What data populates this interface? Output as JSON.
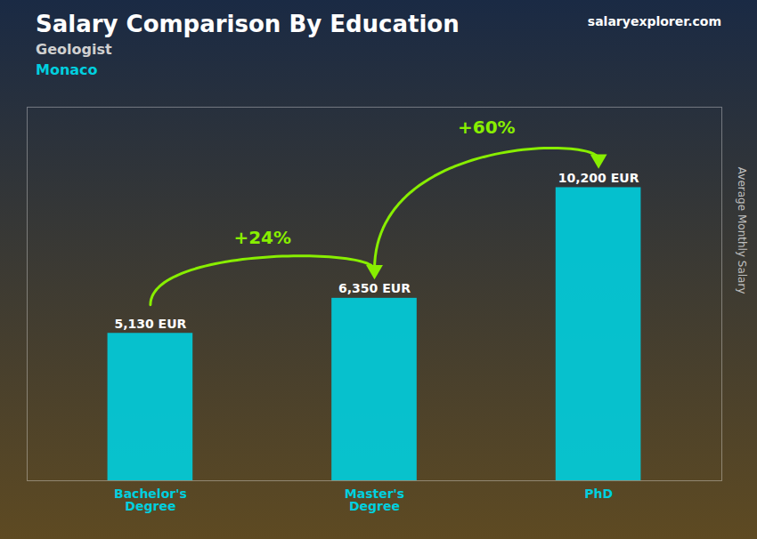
{
  "chart_data": {
    "type": "bar",
    "title": "Salary Comparison By Education",
    "subtitle": [
      "Geologist",
      "Monaco"
    ],
    "ylabel": "Average Monthly Salary",
    "categories": [
      "Bachelor's\nDegree",
      "Master's\nDegree",
      "PhD"
    ],
    "values": [
      5130,
      6350,
      10200
    ],
    "value_labels": [
      "5,130 EUR",
      "6,350 EUR",
      "10,200 EUR"
    ],
    "data_labels": true,
    "color": "#00cfdf",
    "ylim": [
      0,
      13000
    ],
    "tick_labels": "x",
    "grid": false,
    "annotations": [
      {
        "text": "+24%",
        "from": "Bachelor's\nDegree",
        "to": "Master's\nDegree",
        "color": "#88ee00"
      },
      {
        "text": "+60%",
        "from": "Master's\nDegree",
        "to": "PhD",
        "color": "#88ee00"
      },
      {
        "text": "salaryexplorer.com"
      }
    ]
  }
}
